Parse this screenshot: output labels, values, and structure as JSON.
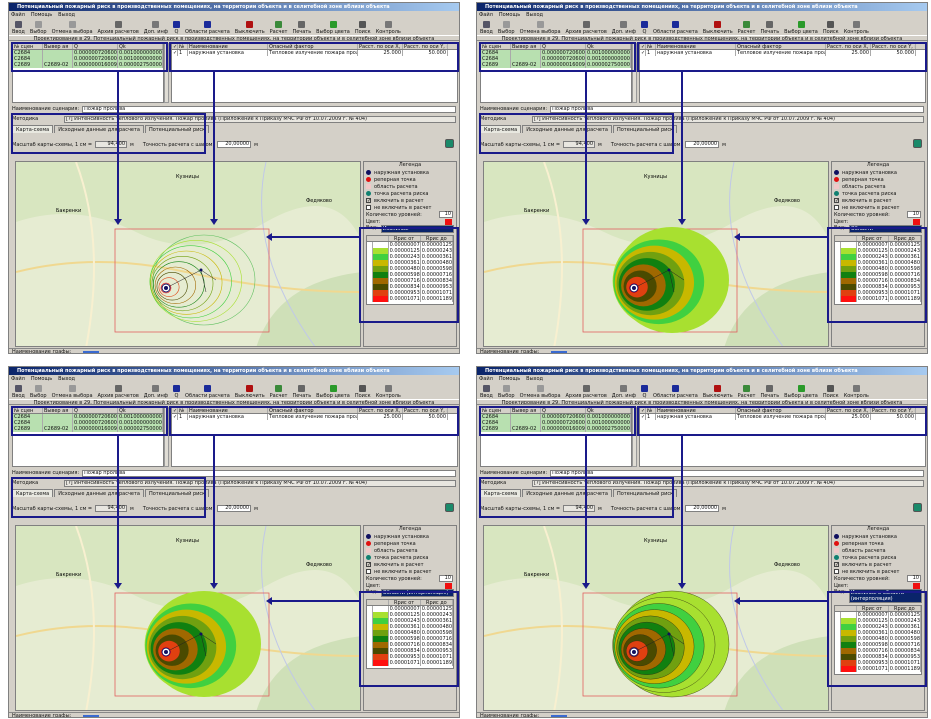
{
  "app": {
    "title": "Потенциальный пожарный риск в производственных помещениях, на территории объекта и в селитебной зоне вблизи объекта",
    "menu": [
      "Файл",
      "Помощь",
      "Выход"
    ],
    "toolbar": [
      {
        "label": "Ввод",
        "icon": "input-icon",
        "color": "#556"
      },
      {
        "label": "Выбор",
        "icon": "select-icon",
        "color": "#999"
      },
      {
        "label": "Отмена выбора",
        "icon": "cancel-select-icon",
        "color": "#999"
      },
      {
        "label": "Архив расчетов",
        "icon": "archive-icon",
        "color": "#666"
      },
      {
        "label": "Доп. инф",
        "icon": "info-doc-icon",
        "color": "#777"
      },
      {
        "label": "Q",
        "icon": "q-icon",
        "color": "#1a2a9a"
      },
      {
        "label": "Области расчета",
        "icon": "area-icon",
        "color": "#1a2a9a"
      },
      {
        "label": "Выключить",
        "icon": "disable-icon",
        "color": "#b01010"
      },
      {
        "label": "Расчет",
        "icon": "calculate-icon",
        "color": "#3a8a3a"
      },
      {
        "label": "Печать",
        "icon": "print-icon",
        "color": "#666"
      },
      {
        "label": "Выбор цвета",
        "icon": "color-icon",
        "color": "#2a9a2a"
      },
      {
        "label": "Поиск",
        "icon": "search-icon",
        "color": "#555"
      },
      {
        "label": "Контроль",
        "icon": "control-icon",
        "color": "#777"
      }
    ],
    "strip": "Проектирование в 29. Потенциальный пожарный риск в производственных помещениях, на территории объекта и в селитебной зоне вблизи объекта",
    "scenarios": {
      "columns": [
        "№ сцен",
        "Вывер ая",
        "Q",
        "Qk"
      ],
      "rows": [
        [
          "C2684",
          "",
          "0.000000720600",
          "0.001000000000"
        ],
        [
          "C2684",
          "",
          "0.000000720600",
          "0.001000000000"
        ],
        [
          "C2689",
          "C2689-02",
          "0.000000016009",
          "0.000002750000"
        ]
      ]
    },
    "objects": {
      "columns": [
        "✓",
        "№",
        "Наименование",
        "Опасный фактор",
        "Расст. по оси X, м",
        "Расст. по оси Y, м"
      ],
      "rows": [
        [
          "✓",
          "1",
          "наружная установка",
          "Тепловое излучение пожара пролива",
          "25.000",
          "50.000"
        ]
      ]
    },
    "scenario_label": "Наименование сценария:",
    "scenario_value": "Пожар пролива",
    "method_label": "Методика",
    "method_value": "[?] Интенсивность теплового излучения. Пожар пролива (Приложение к Приказу МЧС РФ от 10.07.2009 г. № 404)",
    "tabs": [
      "Карта-схема",
      "Исходные данные для расчета",
      "Потенциальный риск"
    ],
    "scale_label": "Масштаб карты-схемы, 1 см =",
    "scale_value": "94,400",
    "unit": "м",
    "step_label": "Точность расчета с шагом:",
    "step_value": "20,00000",
    "status_label": "Наименование графы:",
    "map_labels": [
      "Кузницы",
      "Федяково",
      "Бакренки"
    ],
    "legend": {
      "title": "Легенда",
      "items": [
        {
          "label": "наружная установка",
          "color": "#101060"
        },
        {
          "label": "реперная точка",
          "color": "#e01010"
        },
        {
          "label": "область расчета",
          "color": "#f0c8c8"
        },
        {
          "label": "точка расчета риска",
          "color": "#108070"
        },
        {
          "label": "включить в расчет",
          "color": "check"
        },
        {
          "label": "не включить в расчет",
          "color": "box"
        }
      ],
      "levels_label": "Количество уровней:",
      "levels_value": "10",
      "color_label": "Цвет:",
      "view_label": "Вид:",
      "columns": [
        "Rрис от",
        "Rрис до"
      ],
      "ranges": [
        {
          "from": "0.000000070",
          "to": "0.000001253",
          "color": "#ffffff"
        },
        {
          "from": "0.000001253",
          "to": "0.000002435",
          "color": "#a8e030"
        },
        {
          "from": "0.000002435",
          "to": "0.000003618",
          "color": "#40d040"
        },
        {
          "from": "0.000003618",
          "to": "0.000004801",
          "color": "#c8b800"
        },
        {
          "from": "0.000004801",
          "to": "0.000005984",
          "color": "#70a010"
        },
        {
          "from": "0.000005984",
          "to": "0.000007166",
          "color": "#108010"
        },
        {
          "from": "0.000007166",
          "to": "0.000008349",
          "color": "#a06800"
        },
        {
          "from": "0.000008349",
          "to": "0.000009532",
          "color": "#4a4a00"
        },
        {
          "from": "0.000009532",
          "to": "0.000010714",
          "color": "#e04010"
        },
        {
          "from": "0.000010714",
          "to": "0.000011897",
          "color": "#ff1010"
        }
      ]
    }
  },
  "panels": [
    {
      "view": "Изолинии",
      "mode": "isolines"
    },
    {
      "view": "Области",
      "mode": "areas"
    },
    {
      "view": "Области (интерполяция)",
      "mode": "areas-interp"
    },
    {
      "view": "Изолинии и области (интерполяция)",
      "mode": "isolines-areas"
    }
  ]
}
